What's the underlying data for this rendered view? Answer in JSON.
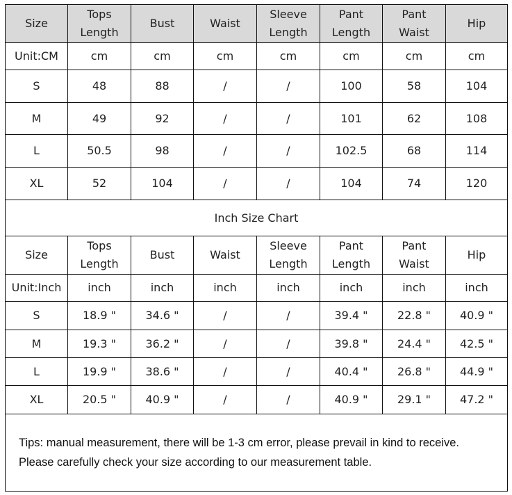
{
  "cm_table": {
    "headers": [
      "Size",
      "Tops\nLength",
      "Bust",
      "Waist",
      "Sleeve\nLength",
      "Pant\nLength",
      "Pant\nWaist",
      "Hip"
    ],
    "units": [
      "Unit:CM",
      "cm",
      "cm",
      "cm",
      "cm",
      "cm",
      "cm",
      "cm"
    ],
    "rows": [
      [
        "S",
        "48",
        "88",
        "/",
        "/",
        "100",
        "58",
        "104"
      ],
      [
        "M",
        "49",
        "92",
        "/",
        "/",
        "101",
        "62",
        "108"
      ],
      [
        "L",
        "50.5",
        "98",
        "/",
        "/",
        "102.5",
        "68",
        "114"
      ],
      [
        "XL",
        "52",
        "104",
        "/",
        "/",
        "104",
        "74",
        "120"
      ]
    ]
  },
  "inch_title": "Inch Size Chart",
  "inch_table": {
    "headers": [
      "Size",
      "Tops\nLength",
      "Bust",
      "Waist",
      "Sleeve\nLength",
      "Pant\nLength",
      "Pant\nWaist",
      "Hip"
    ],
    "units": [
      "Unit:Inch",
      "inch",
      "inch",
      "inch",
      "inch",
      "inch",
      "inch",
      "inch"
    ],
    "rows": [
      [
        "S",
        "18.9 \"",
        "34.6 \"",
        "/",
        "/",
        "39.4 \"",
        "22.8 \"",
        "40.9 \""
      ],
      [
        "M",
        "19.3 \"",
        "36.2 \"",
        "/",
        "/",
        "39.8 \"",
        "24.4 \"",
        "42.5 \""
      ],
      [
        "L",
        "19.9 \"",
        "38.6 \"",
        "/",
        "/",
        "40.4 \"",
        "26.8 \"",
        "44.9 \""
      ],
      [
        "XL",
        "20.5 \"",
        "40.9 \"",
        "/",
        "/",
        "40.9 \"",
        "29.1 \"",
        "47.2 \""
      ]
    ]
  },
  "tips": [
    "Tips: manual measurement, there will be 1-3 cm error, please prevail in kind to receive.",
    "Please carefully check your size according to our measurement table."
  ],
  "colors": {
    "header_bg": "#d9d9d9",
    "border": "#111111"
  }
}
